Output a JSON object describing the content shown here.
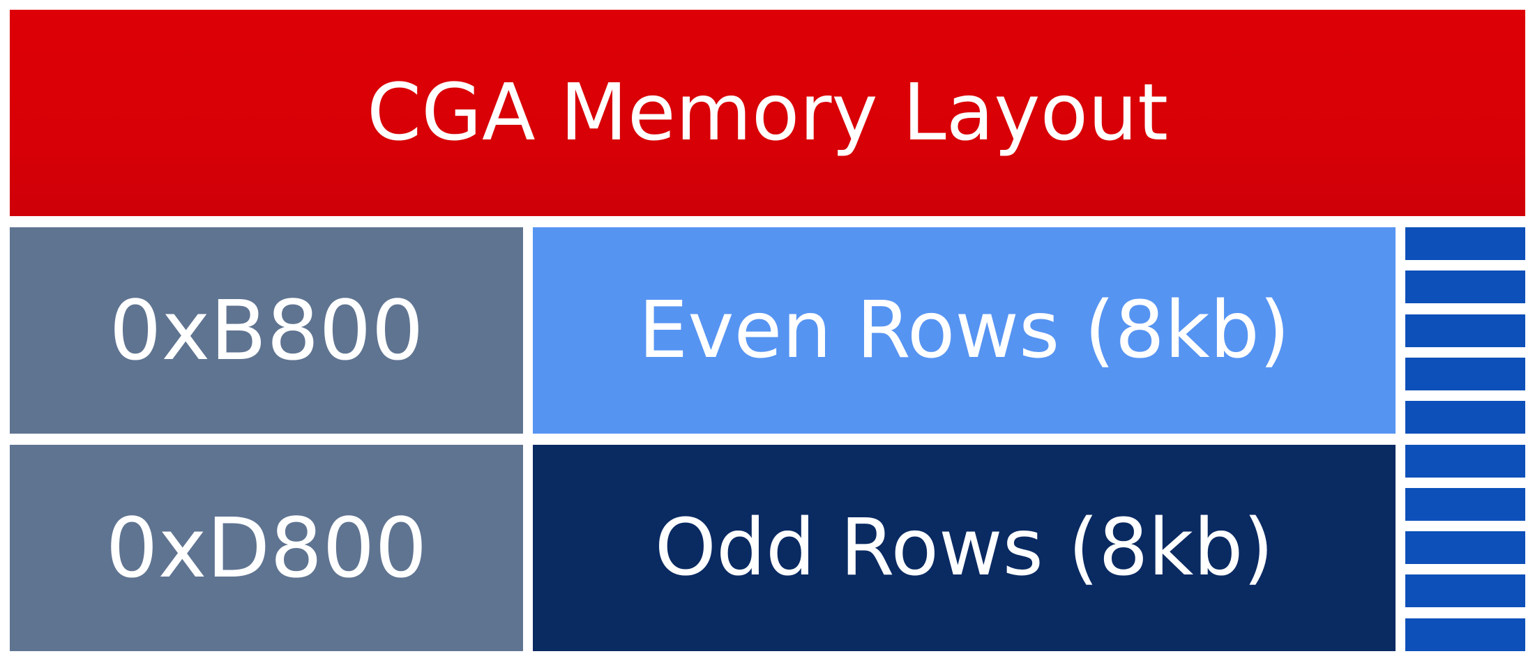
{
  "title": "CGA Memory Layout",
  "colors": {
    "title_bg": "#d90006",
    "address_bg": "#5f7491",
    "even_rows_bg": "#5694f2",
    "odd_rows_bg": "#0a2a62",
    "row_strip": "#0d50b9",
    "text": "#ffffff"
  },
  "address_blocks": [
    {
      "label": "0xB800"
    },
    {
      "label": "0xD800"
    }
  ],
  "memory_regions": [
    {
      "label": "Even Rows (8kb)"
    },
    {
      "label": "Odd Rows (8kb)"
    }
  ],
  "row_strip": {
    "bar_count": 10
  }
}
